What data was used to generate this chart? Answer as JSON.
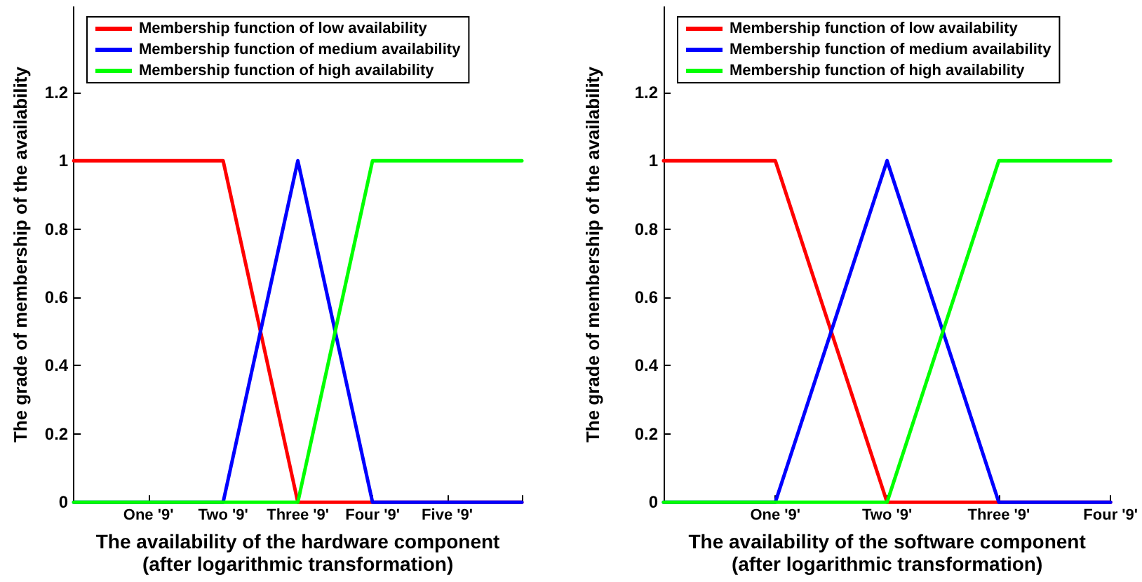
{
  "chart_data": [
    {
      "type": "line",
      "xlabel": "The availability of the hardware component\n(after logarithmic transformation)",
      "ylabel": "The grade of membership of the availability",
      "categories": [
        null,
        "One '9'",
        "Two '9'",
        "Three '9'",
        "Four '9'",
        "Five '9'",
        null
      ],
      "ylim": [
        0,
        1.45
      ],
      "yticks": [
        0,
        0.2,
        0.4,
        0.6,
        0.8,
        1,
        1.2
      ],
      "grid": false,
      "legend": "top left",
      "marker": "none",
      "line_style": "solid",
      "series": [
        {
          "name": "Membership function of low availability",
          "color": "#ff0000",
          "values": [
            1,
            1,
            1,
            0,
            0,
            0,
            0
          ]
        },
        {
          "name": "Membership function of medium availability",
          "color": "#0000ff",
          "values": [
            0,
            0,
            0,
            1,
            0,
            0,
            0
          ]
        },
        {
          "name": "Membership function of high availability",
          "color": "#00ff00",
          "values": [
            0,
            0,
            0,
            0,
            1,
            1,
            1
          ]
        }
      ]
    },
    {
      "type": "line",
      "xlabel": "The availability of the software component\n(after logarithmic transformation)",
      "ylabel": "The grade of membership of the availability",
      "categories": [
        null,
        "One '9'",
        "Two '9'",
        "Three '9'",
        "Four '9'"
      ],
      "ylim": [
        0,
        1.45
      ],
      "yticks": [
        0,
        0.2,
        0.4,
        0.6,
        0.8,
        1,
        1.2
      ],
      "grid": false,
      "legend": "top left",
      "marker": "none",
      "line_style": "solid",
      "series": [
        {
          "name": "Membership function of low availability",
          "color": "#ff0000",
          "values": [
            1,
            1,
            0,
            0,
            0
          ]
        },
        {
          "name": "Membership function of medium availability",
          "color": "#0000ff",
          "values": [
            0,
            0,
            1,
            0,
            0
          ]
        },
        {
          "name": "Membership function of high availability",
          "color": "#00ff00",
          "values": [
            0,
            0,
            0,
            1,
            1
          ]
        }
      ]
    }
  ]
}
